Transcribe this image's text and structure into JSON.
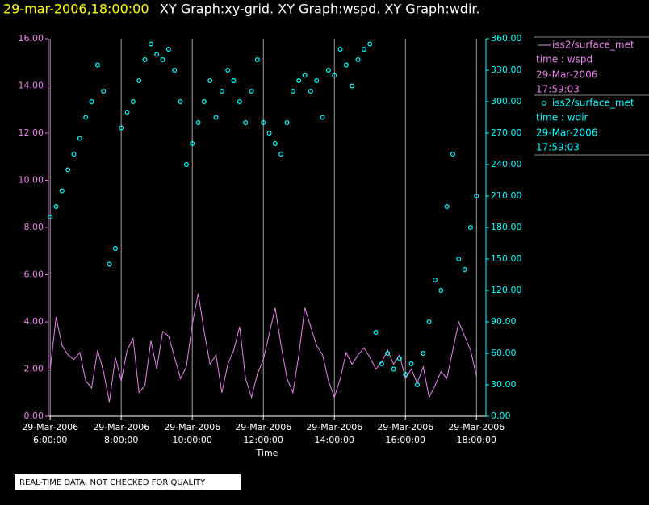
{
  "chart_data": {
    "type": "line",
    "title_time": "29-mar-2006,18:00:00",
    "title": "XY Graph:xy-grid.  XY Graph:wspd.  XY Graph:wdir.",
    "xlabel": "Time",
    "footer": "REAL-TIME DATA, NOT CHECKED FOR QUALITY",
    "grid": "x",
    "xlim": [
      "05:57:00",
      "18:16:00"
    ],
    "xticks": [
      {
        "value": "06:00:00",
        "label": "6:00:00",
        "date": "29-Mar-2006"
      },
      {
        "value": "08:00:00",
        "label": "8:00:00",
        "date": "29-Mar-2006"
      },
      {
        "value": "10:00:00",
        "label": "10:00:00",
        "date": "29-Mar-2006"
      },
      {
        "value": "12:00:00",
        "label": "12:00:00",
        "date": "29-Mar-2006"
      },
      {
        "value": "14:00:00",
        "label": "14:00:00",
        "date": "29-Mar-2006"
      },
      {
        "value": "16:00:00",
        "label": "16:00:00",
        "date": "29-Mar-2006"
      },
      {
        "value": "18:00:00",
        "label": "18:00:00",
        "date": "29-Mar-2006"
      }
    ],
    "ylim": [
      0,
      16
    ],
    "yticks": [
      {
        "value": 0,
        "label": "0.00"
      },
      {
        "value": 2,
        "label": "2.00"
      },
      {
        "value": 4,
        "label": "4.00"
      },
      {
        "value": 6,
        "label": "6.00"
      },
      {
        "value": 8,
        "label": "8.00"
      },
      {
        "value": 10,
        "label": "10.00"
      },
      {
        "value": 12,
        "label": "12.00"
      },
      {
        "value": 14,
        "label": "14.00"
      },
      {
        "value": 16,
        "label": "16.00"
      }
    ],
    "y2lim": [
      0,
      360
    ],
    "y2ticks": [
      {
        "value": 0,
        "label": "0.00"
      },
      {
        "value": 30,
        "label": "30.00"
      },
      {
        "value": 60,
        "label": "60.00"
      },
      {
        "value": 90,
        "label": "90.00"
      },
      {
        "value": 120,
        "label": "120.00"
      },
      {
        "value": 150,
        "label": "150.00"
      },
      {
        "value": 180,
        "label": "180.00"
      },
      {
        "value": 210,
        "label": "210.00"
      },
      {
        "value": 240,
        "label": "240.00"
      },
      {
        "value": 270,
        "label": "270.00"
      },
      {
        "value": 300,
        "label": "300.00"
      },
      {
        "value": 330,
        "label": "330.00"
      },
      {
        "value": 360,
        "label": "360.00"
      }
    ],
    "x": [
      "06:00:00",
      "06:10:00",
      "06:20:00",
      "06:30:00",
      "06:40:00",
      "06:50:00",
      "07:00:00",
      "07:10:00",
      "07:20:00",
      "07:30:00",
      "07:40:00",
      "07:50:00",
      "08:00:00",
      "08:10:00",
      "08:20:00",
      "08:30:00",
      "08:40:00",
      "08:50:00",
      "09:00:00",
      "09:10:00",
      "09:20:00",
      "09:30:00",
      "09:40:00",
      "09:50:00",
      "10:00:00",
      "10:10:00",
      "10:20:00",
      "10:30:00",
      "10:40:00",
      "10:50:00",
      "11:00:00",
      "11:10:00",
      "11:20:00",
      "11:30:00",
      "11:40:00",
      "11:50:00",
      "12:00:00",
      "12:10:00",
      "12:20:00",
      "12:30:00",
      "12:40:00",
      "12:50:00",
      "13:00:00",
      "13:10:00",
      "13:20:00",
      "13:30:00",
      "13:40:00",
      "13:50:00",
      "14:00:00",
      "14:10:00",
      "14:20:00",
      "14:30:00",
      "14:40:00",
      "14:50:00",
      "15:00:00",
      "15:10:00",
      "15:20:00",
      "15:30:00",
      "15:40:00",
      "15:50:00",
      "16:00:00",
      "16:10:00",
      "16:20:00",
      "16:30:00",
      "16:40:00",
      "16:50:00",
      "17:00:00",
      "17:10:00",
      "17:20:00",
      "17:30:00",
      "17:40:00",
      "17:50:00",
      "18:00:00"
    ],
    "series": [
      {
        "name": "iss2/surface_met",
        "label": "time : wspd",
        "legend_date": "29-Mar-2006",
        "legend_time": "17:59:03",
        "type": "line",
        "axis": "y",
        "color": "#e884e8",
        "values": [
          2.0,
          4.2,
          3.0,
          2.6,
          2.4,
          2.7,
          1.5,
          1.2,
          2.8,
          1.9,
          0.6,
          2.5,
          1.5,
          2.8,
          3.3,
          1.0,
          1.3,
          3.2,
          2.0,
          3.6,
          3.4,
          2.5,
          1.6,
          2.1,
          3.9,
          5.2,
          3.6,
          2.2,
          2.6,
          1.0,
          2.2,
          2.8,
          3.8,
          1.6,
          0.8,
          1.8,
          2.4,
          3.5,
          4.6,
          3.0,
          1.6,
          1.0,
          2.6,
          4.6,
          3.8,
          3.0,
          2.6,
          1.5,
          0.8,
          1.6,
          2.7,
          2.2,
          2.6,
          2.9,
          2.5,
          2.0,
          2.3,
          2.8,
          2.2,
          2.6,
          1.6,
          2.0,
          1.4,
          2.1,
          0.8,
          1.3,
          1.9,
          1.6,
          2.8,
          4.0,
          3.4,
          2.8,
          1.7
        ]
      },
      {
        "name": "iss2/surface_met",
        "label": "time : wdir",
        "legend_date": "29-Mar-2006",
        "legend_time": "17:59:03",
        "type": "scatter",
        "axis": "y2",
        "color": "#00ffff",
        "values": [
          190,
          200,
          215,
          235,
          250,
          265,
          285,
          300,
          335,
          310,
          145,
          160,
          275,
          290,
          300,
          320,
          340,
          355,
          345,
          340,
          350,
          330,
          300,
          240,
          260,
          280,
          300,
          320,
          285,
          310,
          330,
          320,
          300,
          280,
          310,
          340,
          280,
          270,
          260,
          250,
          280,
          310,
          320,
          325,
          310,
          320,
          285,
          330,
          325,
          350,
          335,
          315,
          340,
          350,
          355,
          80,
          50,
          60,
          45,
          55,
          40,
          50,
          30,
          60,
          90,
          130,
          120,
          200,
          250,
          150,
          140,
          180,
          210
        ]
      }
    ]
  }
}
